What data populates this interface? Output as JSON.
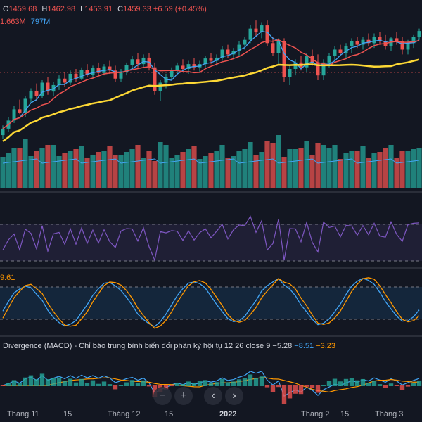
{
  "legend": {
    "ohlc": {
      "open_key": "O",
      "open": "1459.68",
      "high_key": "H",
      "high": "1462.98",
      "low_key": "L",
      "low": "1453.91",
      "close_key": "C",
      "close": "1459.33",
      "change": "+6.59 (+0.45%)"
    },
    "volume": {
      "value": "1.663M",
      "average": "797M"
    },
    "stoch": {
      "value": "9.61"
    },
    "macd": {
      "title": "Divergence (MACD) - Chỉ báo trung bình biến đổi phân kỳ hội tụ 12 26 close 9",
      "macd": "−5.28",
      "signal": "−8.51",
      "hist": "−3.23"
    }
  },
  "x_axis": [
    {
      "label": "Tháng 11",
      "bold": false
    },
    {
      "label": "15",
      "bold": false
    },
    {
      "label": "Tháng 12",
      "bold": false
    },
    {
      "label": "15",
      "bold": false
    },
    {
      "label": "2022",
      "bold": true
    },
    {
      "label": "Tháng 2",
      "bold": false
    },
    {
      "label": "15",
      "bold": false
    },
    {
      "label": "Tháng 3",
      "bold": false
    }
  ],
  "controls": [
    {
      "name": "zoom-out-button",
      "glyph": "−"
    },
    {
      "name": "zoom-in-button",
      "glyph": "+"
    },
    {
      "name": "scroll-left-button",
      "glyph": "‹"
    },
    {
      "name": "scroll-right-button",
      "glyph": "›"
    }
  ],
  "colors": {
    "up": "#26a69a",
    "down": "#ef5350",
    "ma_fast": "#42a5f5",
    "ma_mid": "#ef5350",
    "ma_slow": "#fdd835",
    "rsi": "#7e57c2",
    "stoch_k": "#42a5f5",
    "stoch_d": "#ff9800"
  },
  "chart_data": {
    "type": "candlestick",
    "candles": [
      [
        1330,
        1342,
        1325,
        1338
      ],
      [
        1338,
        1352,
        1334,
        1348
      ],
      [
        1348,
        1366,
        1345,
        1362
      ],
      [
        1362,
        1374,
        1356,
        1358
      ],
      [
        1358,
        1378,
        1352,
        1375
      ],
      [
        1375,
        1388,
        1370,
        1385
      ],
      [
        1385,
        1394,
        1372,
        1378
      ],
      [
        1378,
        1398,
        1376,
        1395
      ],
      [
        1395,
        1402,
        1380,
        1384
      ],
      [
        1384,
        1396,
        1378,
        1392
      ],
      [
        1392,
        1404,
        1386,
        1400
      ],
      [
        1400,
        1408,
        1390,
        1395
      ],
      [
        1395,
        1410,
        1392,
        1406
      ],
      [
        1406,
        1412,
        1396,
        1400
      ],
      [
        1400,
        1414,
        1398,
        1411
      ],
      [
        1411,
        1418,
        1402,
        1405
      ],
      [
        1405,
        1416,
        1400,
        1413
      ],
      [
        1413,
        1420,
        1404,
        1407
      ],
      [
        1407,
        1418,
        1404,
        1415
      ],
      [
        1415,
        1422,
        1406,
        1410
      ],
      [
        1410,
        1416,
        1396,
        1400
      ],
      [
        1400,
        1412,
        1396,
        1408
      ],
      [
        1408,
        1420,
        1404,
        1417
      ],
      [
        1417,
        1428,
        1412,
        1424
      ],
      [
        1424,
        1432,
        1414,
        1418
      ],
      [
        1418,
        1430,
        1414,
        1426
      ],
      [
        1426,
        1432,
        1410,
        1414
      ],
      [
        1414,
        1420,
        1380,
        1385
      ],
      [
        1385,
        1398,
        1372,
        1395
      ],
      [
        1395,
        1406,
        1388,
        1402
      ],
      [
        1402,
        1414,
        1398,
        1410
      ],
      [
        1410,
        1420,
        1404,
        1416
      ],
      [
        1416,
        1424,
        1408,
        1412
      ],
      [
        1412,
        1422,
        1406,
        1418
      ],
      [
        1418,
        1426,
        1410,
        1414
      ],
      [
        1414,
        1422,
        1408,
        1418
      ],
      [
        1418,
        1428,
        1414,
        1425
      ],
      [
        1425,
        1432,
        1418,
        1422
      ],
      [
        1422,
        1430,
        1416,
        1426
      ],
      [
        1426,
        1440,
        1422,
        1436
      ],
      [
        1436,
        1442,
        1426,
        1430
      ],
      [
        1430,
        1438,
        1424,
        1434
      ],
      [
        1434,
        1446,
        1428,
        1442
      ],
      [
        1442,
        1452,
        1436,
        1448
      ],
      [
        1448,
        1466,
        1444,
        1462
      ],
      [
        1462,
        1472,
        1452,
        1458
      ],
      [
        1458,
        1470,
        1450,
        1466
      ],
      [
        1466,
        1472,
        1440,
        1444
      ],
      [
        1444,
        1452,
        1428,
        1432
      ],
      [
        1432,
        1450,
        1418,
        1446
      ],
      [
        1446,
        1450,
        1396,
        1402
      ],
      [
        1402,
        1416,
        1392,
        1412
      ],
      [
        1412,
        1424,
        1404,
        1420
      ],
      [
        1420,
        1428,
        1410,
        1414
      ],
      [
        1414,
        1432,
        1408,
        1428
      ],
      [
        1428,
        1436,
        1416,
        1420
      ],
      [
        1420,
        1430,
        1398,
        1404
      ],
      [
        1404,
        1424,
        1398,
        1420
      ],
      [
        1420,
        1432,
        1414,
        1428
      ],
      [
        1428,
        1440,
        1422,
        1436
      ],
      [
        1436,
        1442,
        1428,
        1432
      ],
      [
        1432,
        1444,
        1426,
        1440
      ],
      [
        1440,
        1450,
        1432,
        1446
      ],
      [
        1446,
        1452,
        1438,
        1442
      ],
      [
        1442,
        1452,
        1436,
        1448
      ],
      [
        1448,
        1456,
        1440,
        1444
      ],
      [
        1444,
        1456,
        1438,
        1452
      ],
      [
        1452,
        1458,
        1442,
        1446
      ],
      [
        1446,
        1454,
        1436,
        1440
      ],
      [
        1440,
        1452,
        1434,
        1450
      ],
      [
        1450,
        1458,
        1442,
        1446
      ],
      [
        1446,
        1452,
        1430,
        1436
      ],
      [
        1436,
        1448,
        1430,
        1444
      ],
      [
        1444,
        1454,
        1438,
        1452
      ],
      [
        1452,
        1462,
        1448,
        1459
      ]
    ]
  }
}
